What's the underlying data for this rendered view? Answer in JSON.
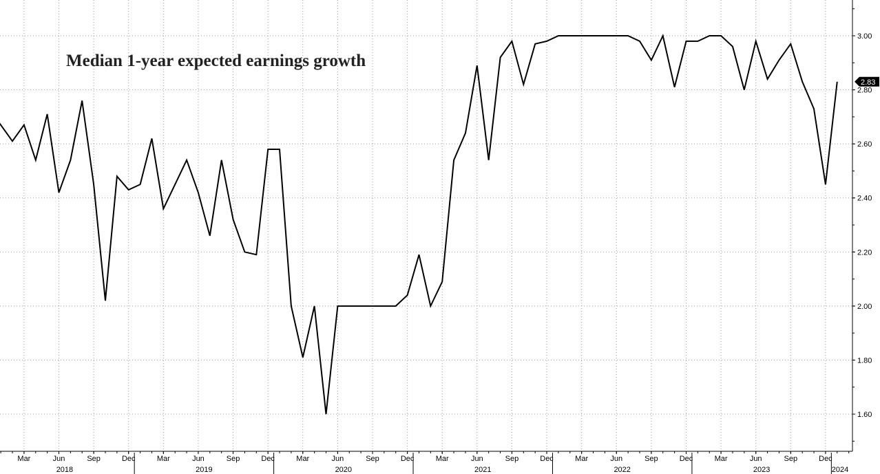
{
  "chart_data": {
    "type": "line",
    "title": "Median 1-year expected earnings growth",
    "xlabel": "",
    "ylabel": "",
    "ylim": [
      1.45,
      3.13
    ],
    "y_ticks": [
      "1.60",
      "1.80",
      "2.00",
      "2.20",
      "2.40",
      "2.60",
      "2.80",
      "3.00"
    ],
    "y_tick_values": [
      1.6,
      1.8,
      2.0,
      2.2,
      2.4,
      2.6,
      2.8,
      3.0
    ],
    "month_ticks": [
      {
        "label": "Mar",
        "date": "2018-03"
      },
      {
        "label": "Jun",
        "date": "2018-06"
      },
      {
        "label": "Sep",
        "date": "2018-09"
      },
      {
        "label": "Dec",
        "date": "2018-12"
      },
      {
        "label": "Mar",
        "date": "2019-03"
      },
      {
        "label": "Jun",
        "date": "2019-06"
      },
      {
        "label": "Sep",
        "date": "2019-09"
      },
      {
        "label": "Dec",
        "date": "2019-12"
      },
      {
        "label": "Mar",
        "date": "2020-03"
      },
      {
        "label": "Jun",
        "date": "2020-06"
      },
      {
        "label": "Sep",
        "date": "2020-09"
      },
      {
        "label": "Dec",
        "date": "2020-12"
      },
      {
        "label": "Mar",
        "date": "2021-03"
      },
      {
        "label": "Jun",
        "date": "2021-06"
      },
      {
        "label": "Sep",
        "date": "2021-09"
      },
      {
        "label": "Dec",
        "date": "2021-12"
      },
      {
        "label": "Mar",
        "date": "2022-03"
      },
      {
        "label": "Jun",
        "date": "2022-06"
      },
      {
        "label": "Sep",
        "date": "2022-09"
      },
      {
        "label": "Dec",
        "date": "2022-12"
      },
      {
        "label": "Mar",
        "date": "2023-03"
      },
      {
        "label": "Jun",
        "date": "2023-06"
      },
      {
        "label": "Sep",
        "date": "2023-09"
      },
      {
        "label": "Dec",
        "date": "2023-12"
      }
    ],
    "year_ticks": [
      {
        "label": "2018",
        "date": "2018-01"
      },
      {
        "label": "2019",
        "date": "2019-01"
      },
      {
        "label": "2020",
        "date": "2020-01"
      },
      {
        "label": "2021",
        "date": "2021-01"
      },
      {
        "label": "2022",
        "date": "2022-01"
      },
      {
        "label": "2023",
        "date": "2023-01"
      },
      {
        "label": "2024",
        "date": "2024-01"
      }
    ],
    "last_value_label": "2.83",
    "series": [
      {
        "x": [
          "2017-12",
          "2018-01",
          "2018-02",
          "2018-03",
          "2018-04",
          "2018-05",
          "2018-06",
          "2018-07",
          "2018-08",
          "2018-09",
          "2018-10",
          "2018-11",
          "2018-12",
          "2019-01",
          "2019-02",
          "2019-03",
          "2019-04",
          "2019-05",
          "2019-06",
          "2019-07",
          "2019-08",
          "2019-09",
          "2019-10",
          "2019-11",
          "2019-12",
          "2020-01",
          "2020-02",
          "2020-03",
          "2020-04",
          "2020-05",
          "2020-06",
          "2020-07",
          "2020-08",
          "2020-09",
          "2020-10",
          "2020-11",
          "2020-12",
          "2021-01",
          "2021-02",
          "2021-03",
          "2021-04",
          "2021-05",
          "2021-06",
          "2021-07",
          "2021-08",
          "2021-09",
          "2021-10",
          "2021-11",
          "2021-12",
          "2022-01",
          "2022-02",
          "2022-03",
          "2022-04",
          "2022-05",
          "2022-06",
          "2022-07",
          "2022-08",
          "2022-09",
          "2022-10",
          "2022-11",
          "2022-12",
          "2023-01",
          "2023-02",
          "2023-03",
          "2023-04",
          "2023-05",
          "2023-06",
          "2023-07",
          "2023-08",
          "2023-09",
          "2023-10",
          "2023-11",
          "2023-12",
          "2024-01"
        ],
        "values": [
          2.73,
          2.67,
          2.61,
          2.67,
          2.54,
          2.71,
          2.42,
          2.54,
          2.76,
          2.45,
          2.02,
          2.48,
          2.43,
          2.45,
          2.62,
          2.36,
          2.45,
          2.54,
          2.42,
          2.26,
          2.54,
          2.32,
          2.2,
          2.19,
          2.58,
          2.58,
          2.0,
          1.81,
          2.0,
          1.6,
          2.0,
          2.0,
          2.0,
          2.0,
          2.0,
          2.0,
          2.04,
          2.19,
          2.0,
          2.09,
          2.54,
          2.64,
          2.89,
          2.54,
          2.92,
          2.98,
          2.82,
          2.97,
          2.98,
          3.0,
          3.0,
          3.0,
          3.0,
          3.0,
          3.0,
          3.0,
          2.98,
          2.91,
          3.0,
          2.81,
          2.98,
          2.98,
          3.0,
          3.0,
          2.96,
          2.8,
          2.98,
          2.84,
          2.91,
          2.97,
          2.83,
          2.73,
          2.45,
          2.83
        ]
      }
    ],
    "grid": true,
    "grid_style": "dotted vertical and horizontal"
  }
}
